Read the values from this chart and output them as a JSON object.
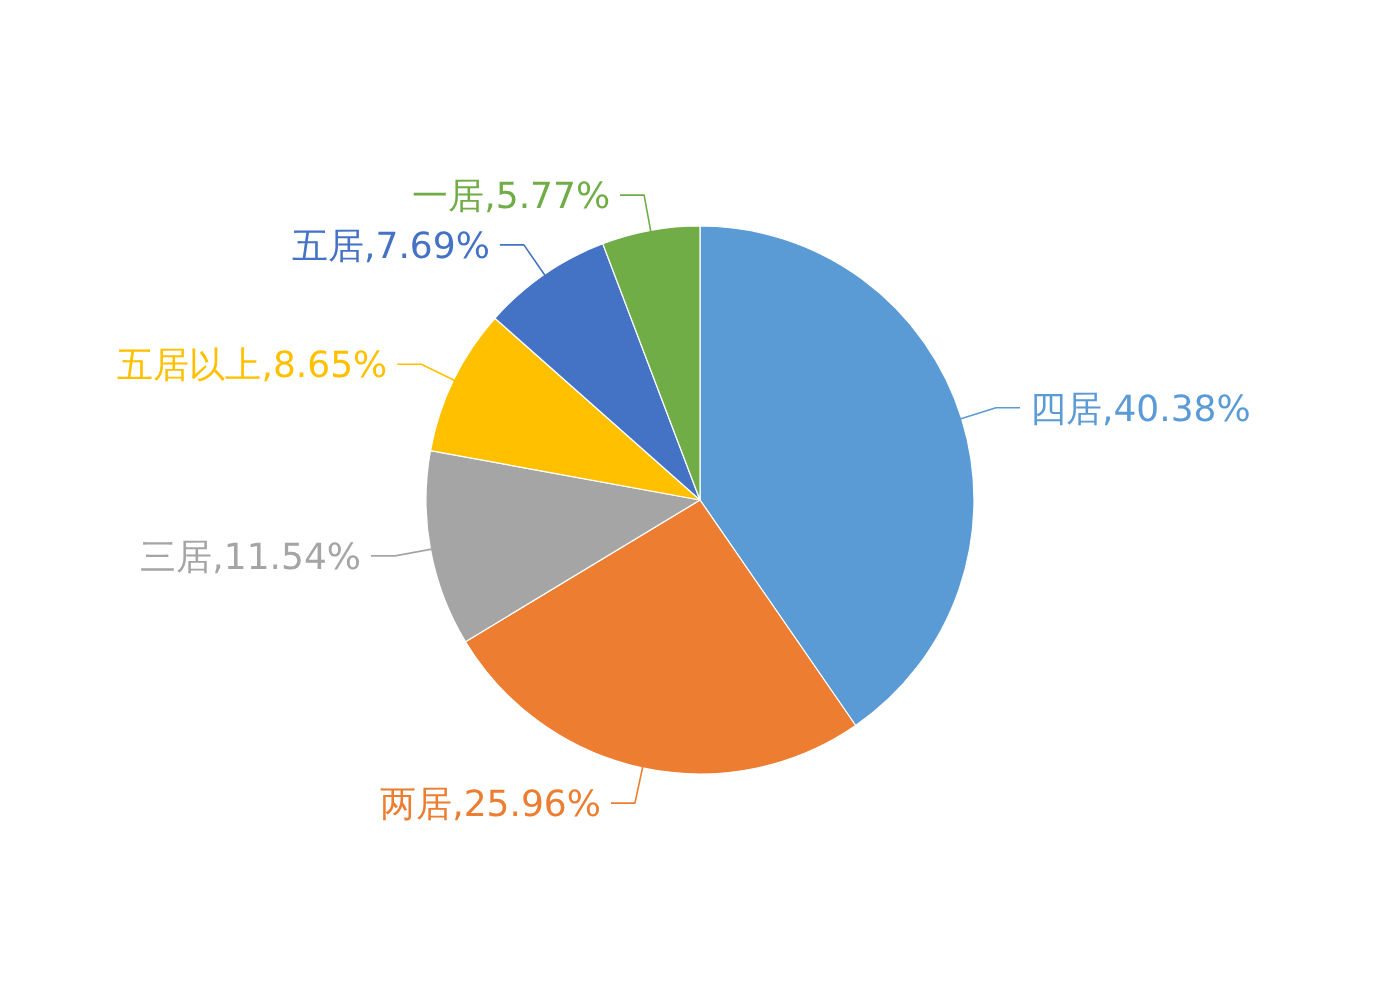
{
  "chart_data": {
    "type": "pie",
    "categories": [
      "四居",
      "两居",
      "三居",
      "五居以上",
      "五居",
      "一居"
    ],
    "values": [
      40.38,
      25.96,
      11.54,
      8.65,
      7.69,
      5.77
    ],
    "value_labels": [
      ",40.38%",
      ",25.96%",
      ",11.54%",
      ",8.65%",
      ",7.69%",
      ",5.77%"
    ],
    "colors": [
      "#5b9bd5",
      "#ed7d31",
      "#a5a5a5",
      "#ffc000",
      "#4472c4",
      "#70ad47"
    ]
  }
}
